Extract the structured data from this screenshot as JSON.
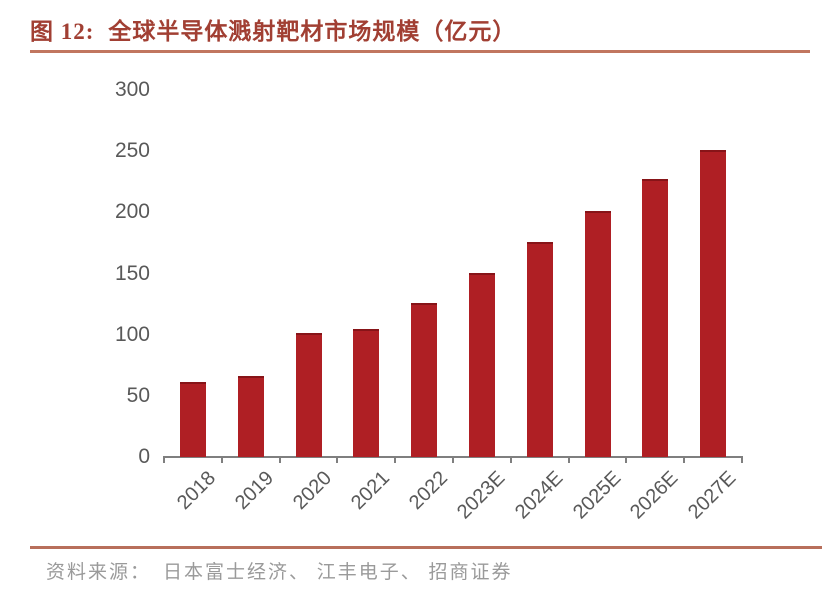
{
  "title": {
    "prefix": "图 12:",
    "text": "全球半导体溅射靶材市场规模（亿元）"
  },
  "source": {
    "label": "资料来源：",
    "text": "日本富士经济、 江丰电子、 招商证券"
  },
  "colors": {
    "bar": "#AF1F24",
    "title_text": "#A13F33",
    "title_rule": "#C1765F",
    "footer_rule": "#B86F5B",
    "axis": "#7F7F7F",
    "tick_label": "#595959",
    "source_text": "#9A9A9A"
  },
  "chart_data": {
    "type": "bar",
    "title": "全球半导体溅射靶材市场规模（亿元）",
    "categories": [
      "2018",
      "2019",
      "2020",
      "2021",
      "2022",
      "2023E",
      "2024E",
      "2025E",
      "2026E",
      "2027E"
    ],
    "values": [
      61,
      66,
      101,
      105,
      126,
      150,
      176,
      201,
      227,
      251
    ],
    "xlabel": "",
    "ylabel": "",
    "ylim": [
      0,
      300
    ],
    "yticks": [
      0,
      50,
      100,
      150,
      200,
      250,
      300
    ],
    "grid": false,
    "legend": false,
    "bar_color": "#AF1F24"
  }
}
